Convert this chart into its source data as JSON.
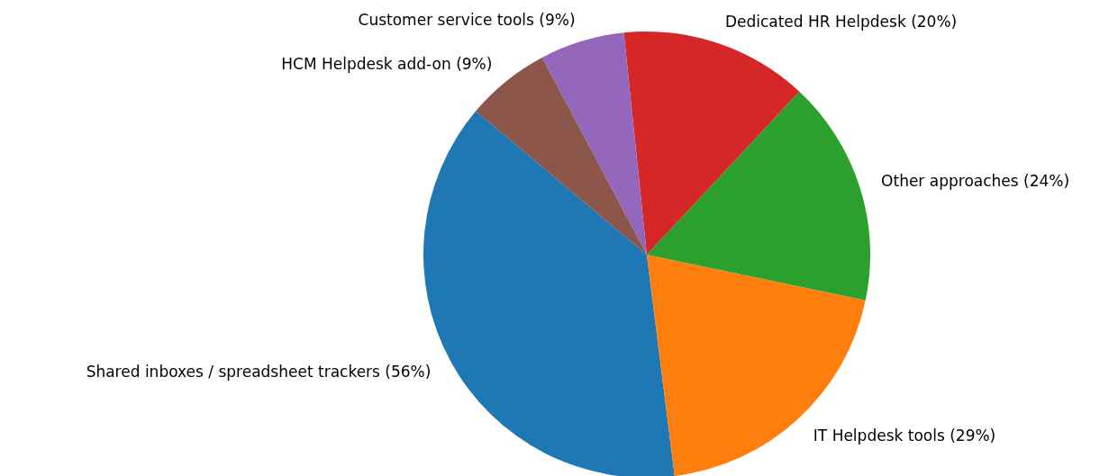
{
  "chart_data": {
    "type": "pie",
    "categories": [
      "Shared inboxes / spreadsheet trackers (56%)",
      "IT Helpdesk tools (29%)",
      "Other approaches (24%)",
      "Dedicated HR Helpdesk (20%)",
      "Customer service tools (9%)",
      "HCM Helpdesk add-on (9%)"
    ],
    "values": [
      56,
      29,
      24,
      20,
      9,
      9
    ],
    "colors": [
      "#1f77b4",
      "#ff7f0e",
      "#2ca02c",
      "#d62728",
      "#9467bd",
      "#8c564b"
    ]
  }
}
